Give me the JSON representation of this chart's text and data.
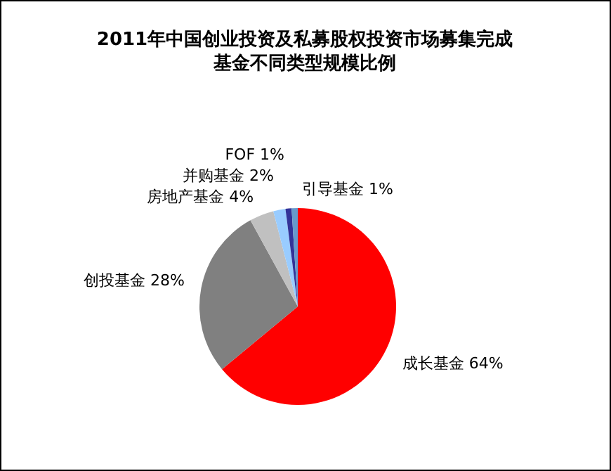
{
  "chart_data": {
    "type": "pie",
    "title": "2011年中国创业投资及私募股权投资市场募集完成基金不同类型规模比例",
    "categories": [
      "成长基金",
      "创投基金",
      "房地产基金",
      "并购基金",
      "FOF",
      "引导基金"
    ],
    "values": [
      64,
      28,
      4,
      2,
      1,
      1
    ],
    "value_labels": [
      "64%",
      "28%",
      "4%",
      "2%",
      "1%",
      "1%"
    ],
    "colors": [
      "#ff0000",
      "#808080",
      "#c0c0c0",
      "#99ccff",
      "#333399",
      "#6699cc"
    ]
  }
}
